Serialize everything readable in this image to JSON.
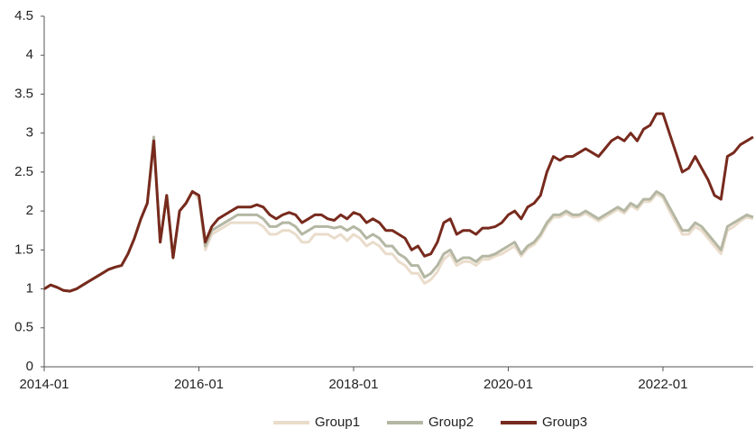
{
  "chart_data": {
    "type": "line",
    "x": [
      "2014-01",
      "2014-02",
      "2014-03",
      "2014-04",
      "2014-05",
      "2014-06",
      "2014-07",
      "2014-08",
      "2014-09",
      "2014-10",
      "2014-11",
      "2014-12",
      "2015-01",
      "2015-02",
      "2015-03",
      "2015-04",
      "2015-05",
      "2015-06",
      "2015-07",
      "2015-08",
      "2015-09",
      "2015-10",
      "2015-11",
      "2015-12",
      "2016-01",
      "2016-02",
      "2016-03",
      "2016-04",
      "2016-05",
      "2016-06",
      "2016-07",
      "2016-08",
      "2016-09",
      "2016-10",
      "2016-11",
      "2016-12",
      "2017-01",
      "2017-02",
      "2017-03",
      "2017-04",
      "2017-05",
      "2017-06",
      "2017-07",
      "2017-08",
      "2017-09",
      "2017-10",
      "2017-11",
      "2017-12",
      "2018-01",
      "2018-02",
      "2018-03",
      "2018-04",
      "2018-05",
      "2018-06",
      "2018-07",
      "2018-08",
      "2018-09",
      "2018-10",
      "2018-11",
      "2018-12",
      "2019-01",
      "2019-02",
      "2019-03",
      "2019-04",
      "2019-05",
      "2019-06",
      "2019-07",
      "2019-08",
      "2019-09",
      "2019-10",
      "2019-11",
      "2019-12",
      "2020-01",
      "2020-02",
      "2020-03",
      "2020-04",
      "2020-05",
      "2020-06",
      "2020-07",
      "2020-08",
      "2020-09",
      "2020-10",
      "2020-11",
      "2020-12",
      "2021-01",
      "2021-02",
      "2021-03",
      "2021-04",
      "2021-05",
      "2021-06",
      "2021-07",
      "2021-08",
      "2021-09",
      "2021-10",
      "2021-11",
      "2021-12",
      "2022-01",
      "2022-02",
      "2022-03",
      "2022-04",
      "2022-05",
      "2022-06",
      "2022-07",
      "2022-08",
      "2022-09",
      "2022-10",
      "2022-11",
      "2022-12",
      "2023-01",
      "2023-02",
      "2023-03"
    ],
    "series": [
      {
        "name": "Group1",
        "color": "#eadccb",
        "values": [
          1.0,
          1.05,
          1.02,
          0.98,
          0.97,
          1.0,
          1.05,
          1.1,
          1.15,
          1.2,
          1.25,
          1.28,
          1.3,
          1.45,
          1.65,
          1.9,
          2.1,
          2.9,
          1.6,
          2.2,
          1.4,
          2.0,
          2.1,
          2.25,
          2.15,
          1.5,
          1.7,
          1.75,
          1.8,
          1.85,
          1.85,
          1.85,
          1.85,
          1.85,
          1.8,
          1.7,
          1.7,
          1.75,
          1.75,
          1.7,
          1.6,
          1.6,
          1.7,
          1.7,
          1.7,
          1.65,
          1.7,
          1.62,
          1.7,
          1.65,
          1.55,
          1.6,
          1.55,
          1.45,
          1.45,
          1.35,
          1.3,
          1.2,
          1.2,
          1.07,
          1.12,
          1.22,
          1.38,
          1.45,
          1.3,
          1.35,
          1.35,
          1.3,
          1.38,
          1.38,
          1.42,
          1.45,
          1.5,
          1.55,
          1.42,
          1.52,
          1.57,
          1.67,
          1.82,
          1.92,
          1.92,
          1.97,
          1.92,
          1.93,
          1.97,
          1.92,
          1.87,
          1.92,
          1.97,
          2.02,
          1.97,
          2.07,
          2.02,
          2.12,
          2.12,
          2.22,
          2.17,
          2.0,
          1.85,
          1.7,
          1.7,
          1.8,
          1.75,
          1.65,
          1.55,
          1.45,
          1.75,
          1.8,
          1.87,
          1.92,
          1.9
        ]
      },
      {
        "name": "Group2",
        "color": "#b4b7a3",
        "values": [
          1.0,
          1.05,
          1.02,
          0.98,
          0.97,
          1.0,
          1.05,
          1.1,
          1.15,
          1.2,
          1.25,
          1.28,
          1.3,
          1.45,
          1.65,
          1.9,
          2.1,
          2.95,
          1.6,
          2.2,
          1.4,
          2.0,
          2.1,
          2.25,
          2.2,
          1.55,
          1.75,
          1.8,
          1.85,
          1.9,
          1.95,
          1.95,
          1.95,
          1.95,
          1.9,
          1.8,
          1.8,
          1.85,
          1.85,
          1.8,
          1.7,
          1.75,
          1.8,
          1.8,
          1.8,
          1.78,
          1.8,
          1.75,
          1.8,
          1.75,
          1.65,
          1.7,
          1.65,
          1.55,
          1.55,
          1.45,
          1.4,
          1.3,
          1.3,
          1.15,
          1.2,
          1.3,
          1.45,
          1.5,
          1.35,
          1.4,
          1.4,
          1.35,
          1.42,
          1.42,
          1.45,
          1.5,
          1.55,
          1.6,
          1.45,
          1.55,
          1.6,
          1.7,
          1.85,
          1.95,
          1.95,
          2.0,
          1.95,
          1.95,
          2.0,
          1.95,
          1.9,
          1.95,
          2.0,
          2.05,
          2.0,
          2.1,
          2.05,
          2.15,
          2.15,
          2.25,
          2.2,
          2.05,
          1.9,
          1.75,
          1.75,
          1.85,
          1.8,
          1.7,
          1.6,
          1.5,
          1.8,
          1.85,
          1.9,
          1.95,
          1.92
        ]
      },
      {
        "name": "Group3",
        "color": "#772a1d",
        "values": [
          1.0,
          1.05,
          1.02,
          0.98,
          0.97,
          1.0,
          1.05,
          1.1,
          1.15,
          1.2,
          1.25,
          1.28,
          1.3,
          1.45,
          1.65,
          1.9,
          2.1,
          2.9,
          1.6,
          2.2,
          1.4,
          2.0,
          2.1,
          2.25,
          2.2,
          1.6,
          1.8,
          1.9,
          1.95,
          2.0,
          2.05,
          2.05,
          2.05,
          2.08,
          2.05,
          1.95,
          1.9,
          1.95,
          1.98,
          1.95,
          1.85,
          1.9,
          1.95,
          1.95,
          1.9,
          1.88,
          1.95,
          1.9,
          1.98,
          1.95,
          1.85,
          1.9,
          1.85,
          1.75,
          1.75,
          1.7,
          1.65,
          1.5,
          1.55,
          1.42,
          1.45,
          1.6,
          1.85,
          1.9,
          1.7,
          1.75,
          1.75,
          1.7,
          1.78,
          1.78,
          1.8,
          1.85,
          1.95,
          2.0,
          1.9,
          2.05,
          2.1,
          2.2,
          2.5,
          2.7,
          2.65,
          2.7,
          2.7,
          2.75,
          2.8,
          2.75,
          2.7,
          2.8,
          2.9,
          2.95,
          2.9,
          3.0,
          2.9,
          3.05,
          3.1,
          3.25,
          3.25,
          3.0,
          2.75,
          2.5,
          2.55,
          2.7,
          2.55,
          2.4,
          2.2,
          2.15,
          2.7,
          2.75,
          2.85,
          2.9,
          2.95
        ]
      }
    ],
    "xlim": [
      "2014-01",
      "2023-03"
    ],
    "xticks": [
      "2014-01",
      "2016-01",
      "2018-01",
      "2020-01",
      "2022-01"
    ],
    "ylim": [
      0,
      4.5
    ],
    "yticks": [
      0,
      0.5,
      1,
      1.5,
      2,
      2.5,
      3,
      3.5,
      4,
      4.5
    ],
    "grid": false,
    "legend": "bottom"
  }
}
